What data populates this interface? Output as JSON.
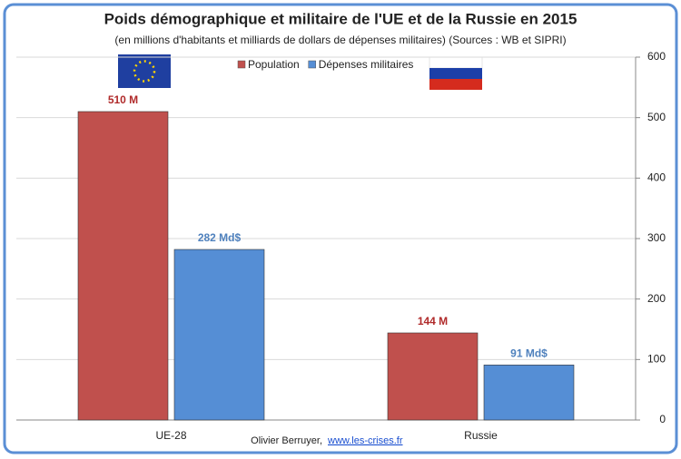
{
  "chart_data": {
    "type": "bar",
    "title": "Poids démographique et militaire de l'UE et de la Russie en 2015",
    "subtitle": "(en millions d'habitants et milliards de dollars de dépenses militaires) (Sources : WB et SIPRI)",
    "categories": [
      "UE-28",
      "Russie"
    ],
    "series": [
      {
        "name": "Population",
        "color": "#c0504d",
        "label_color": "#b02a2a",
        "values": [
          510,
          144
        ],
        "value_labels": [
          "510 M",
          "144 M"
        ]
      },
      {
        "name": "Dépenses militaires",
        "color": "#558ed5",
        "label_color": "#4f81bd",
        "values": [
          282,
          91
        ],
        "value_labels": [
          "282 Md$",
          "91 Md$"
        ]
      }
    ],
    "ylim": [
      0,
      600
    ],
    "yticks": [
      0,
      100,
      200,
      300,
      400,
      500,
      600
    ],
    "grid": true,
    "y_axis_side": "right",
    "credit": {
      "author": "Olivier Berruyer,",
      "link": "www.les-crises.fr"
    }
  }
}
